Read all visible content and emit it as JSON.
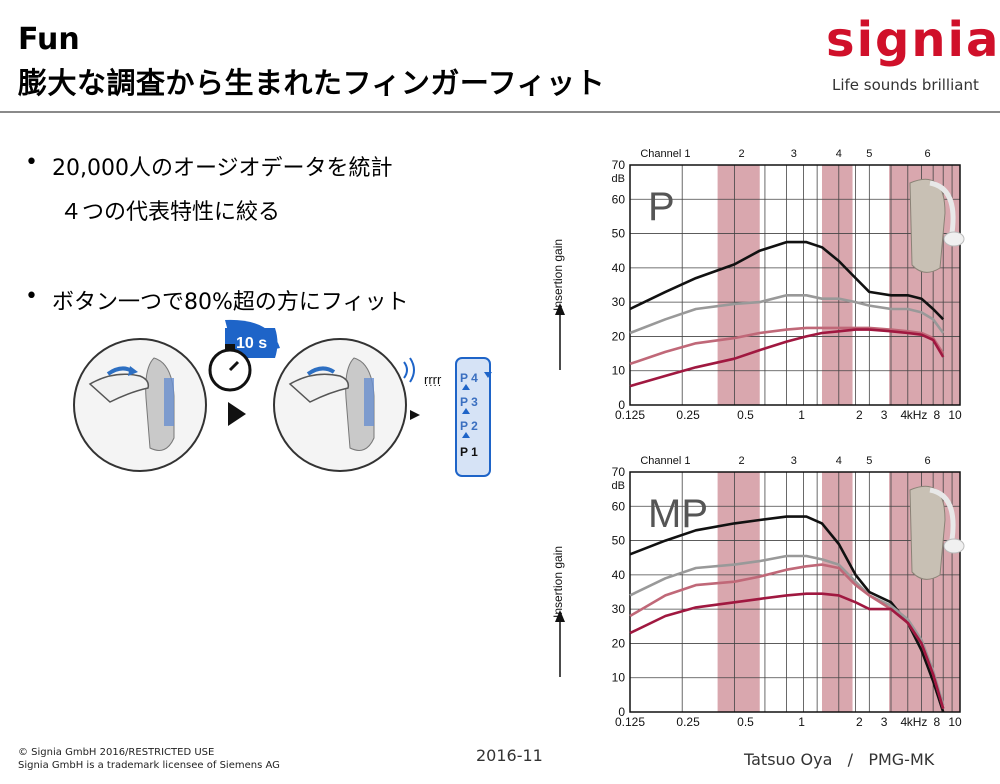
{
  "header": {
    "title_line1": "Fun",
    "title_line2": "膨大な調査から生まれたフィンガーフィット",
    "logo_word": "signia",
    "logo_tagline": "Life sounds brilliant"
  },
  "bullets": [
    {
      "text": "20,000人のオージオデータを統計",
      "sub": "４つの代表特性に絞る"
    },
    {
      "text": "ボタン一つで80%超の方にフィット"
    }
  ],
  "illustration": {
    "timer_label": "10 s",
    "programs": [
      "P 4",
      "P 3",
      "P 2",
      "P 1"
    ]
  },
  "charts_common": {
    "channel_labels": [
      "Channel 1",
      "2",
      "3",
      "4",
      "5",
      "6"
    ],
    "y_unit": "dB",
    "y_axis_label": "Insertion gain",
    "y_ticks": [
      "70",
      "60",
      "50",
      "40",
      "30",
      "20",
      "10",
      "0"
    ],
    "x_ticks": [
      "0.125",
      "0.25",
      "0.5",
      "1",
      "2",
      "3",
      "4",
      "kHz",
      "8",
      "10"
    ]
  },
  "chart_data": [
    {
      "type": "line",
      "title": "P",
      "ylim": [
        0,
        70
      ],
      "xscale": "log",
      "x": [
        0.125,
        0.2,
        0.3,
        0.5,
        0.7,
        1,
        1.3,
        1.6,
        2,
        2.5,
        3,
        4,
        5,
        6,
        7,
        8
      ],
      "series": [
        {
          "color": "#111111",
          "values": [
            28,
            33,
            37,
            41,
            45,
            47.5,
            47.5,
            46,
            42,
            37,
            33,
            32,
            32,
            31,
            28,
            25
          ]
        },
        {
          "color": "#999999",
          "values": [
            21,
            25,
            28,
            29.5,
            30,
            32,
            32,
            31,
            31,
            30,
            29,
            28,
            28,
            27,
            25,
            21
          ]
        },
        {
          "color": "#c06878",
          "values": [
            12,
            15.5,
            18,
            19.5,
            21,
            22,
            22.5,
            22.5,
            22.5,
            22.5,
            22.5,
            22,
            21.5,
            21,
            19.5,
            15
          ]
        },
        {
          "color": "#a01840",
          "values": [
            5.5,
            8.5,
            11,
            13.5,
            16,
            18.5,
            20,
            21,
            21.5,
            22,
            22,
            21.5,
            21,
            20.5,
            19,
            14
          ]
        }
      ]
    },
    {
      "type": "line",
      "title": "MP",
      "ylim": [
        0,
        70
      ],
      "xscale": "log",
      "x": [
        0.125,
        0.2,
        0.3,
        0.5,
        0.7,
        1,
        1.3,
        1.6,
        2,
        2.5,
        3,
        4,
        5,
        6,
        7,
        8
      ],
      "series": [
        {
          "color": "#111111",
          "values": [
            46,
            50,
            53,
            55,
            56,
            57,
            57,
            55,
            49,
            40,
            35,
            32,
            26,
            18,
            9,
            0
          ]
        },
        {
          "color": "#999999",
          "values": [
            34,
            39,
            42,
            43,
            44,
            45.5,
            45.5,
            44.5,
            43,
            38,
            34,
            31,
            27,
            21,
            12,
            2
          ]
        },
        {
          "color": "#c06878",
          "values": [
            28,
            34,
            37,
            38,
            39.5,
            41.5,
            42.5,
            43,
            42,
            37,
            34,
            30,
            26,
            20,
            11,
            1
          ]
        },
        {
          "color": "#a01840",
          "values": [
            23,
            28,
            30.5,
            32,
            33,
            34,
            34.5,
            34.5,
            34,
            32,
            30,
            30,
            26,
            20,
            11,
            1
          ]
        }
      ]
    }
  ],
  "footer": {
    "copyright_line1": "© Signia GmbH 2016/RESTRICTED USE",
    "copyright_line2": "Signia GmbH is a trademark licensee of Siemens AG",
    "date": "2016-11",
    "author": "Tatsuo Oya   /   PMG-MK"
  }
}
